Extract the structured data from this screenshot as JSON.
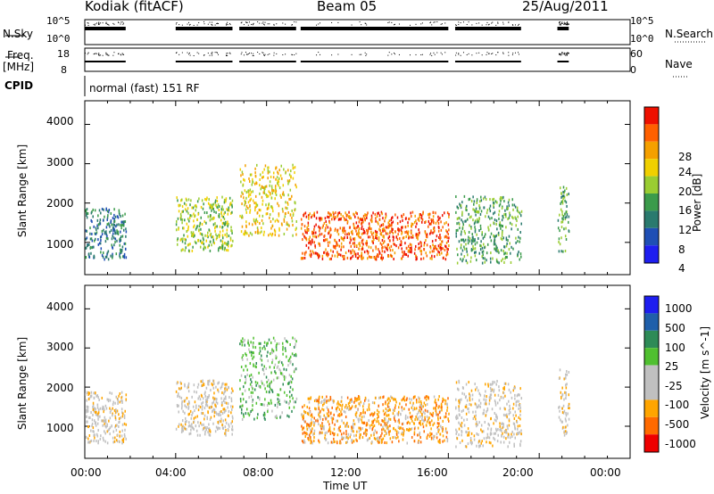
{
  "header": {
    "station": "Kodiak (fitACF)",
    "beam": "Beam 05",
    "date": "25/Aug/2011"
  },
  "mini_panels": {
    "nsky": {
      "left_label": "N.Sky",
      "right_label": "N.Search",
      "left_ticks": [
        "10^5",
        "10^0"
      ],
      "right_ticks": [
        "10^5",
        "10^0"
      ]
    },
    "freq": {
      "left_label_line1": "Freq.",
      "left_label_line2": "[MHz]",
      "right_label": "Nave",
      "left_ticks": [
        "18",
        "8"
      ],
      "right_ticks": [
        "60",
        "0"
      ]
    },
    "cpid": {
      "label": "CPID",
      "text": "normal (fast) 151 RF"
    }
  },
  "x_axis": {
    "label": "Time UT",
    "ticks": [
      "00:00",
      "04:00",
      "08:00",
      "12:00",
      "16:00",
      "20:00",
      "00:00"
    ]
  },
  "colors": {
    "power_scale": [
      "#1e1ef0",
      "#1f4fb5",
      "#2a7a6e",
      "#3b9b4b",
      "#9acd32",
      "#f0d000",
      "#f5a000",
      "#ff6000",
      "#ee1000"
    ],
    "velocity_scale": [
      "#ee0000",
      "#ff6a00",
      "#ffa500",
      "#c0c0c0",
      "#c0c0c0",
      "#50c030",
      "#2e8b57",
      "#1f5faa",
      "#1e1ef0"
    ]
  },
  "chart_data": [
    {
      "type": "heatmap",
      "title": "",
      "xlabel": "Time UT",
      "ylabel": "Slant Range [km]",
      "xlim": [
        "00:00",
        "24:00"
      ],
      "ylim": [
        180,
        4600
      ],
      "yticks": [
        "1000",
        "2000",
        "3000",
        "4000"
      ],
      "colorbar": {
        "label": "Power [dB]",
        "ticks": [
          "4",
          "8",
          "12",
          "16",
          "20",
          "24",
          "28"
        ]
      },
      "scatter_regions": [
        {
          "t_start": 0.0,
          "t_end": 1.8,
          "range_min": 600,
          "range_max": 1900,
          "power_db": 8
        },
        {
          "t_start": 4.0,
          "t_end": 6.5,
          "range_min": 800,
          "range_max": 2200,
          "power_db": 14
        },
        {
          "t_start": 6.8,
          "t_end": 9.3,
          "range_min": 1200,
          "range_max": 3000,
          "power_db": 20
        },
        {
          "t_start": 9.5,
          "t_end": 16.0,
          "range_min": 600,
          "range_max": 1800,
          "power_db": 26
        },
        {
          "t_start": 16.3,
          "t_end": 19.2,
          "range_min": 500,
          "range_max": 2200,
          "power_db": 12
        },
        {
          "t_start": 20.8,
          "t_end": 21.3,
          "range_min": 800,
          "range_max": 2500,
          "power_db": 10
        }
      ]
    },
    {
      "type": "heatmap",
      "title": "",
      "xlabel": "Time UT",
      "ylabel": "Slant Range [km]",
      "xlim": [
        "00:00",
        "24:00"
      ],
      "ylim": [
        180,
        4600
      ],
      "yticks": [
        "1000",
        "2000",
        "3000",
        "4000"
      ],
      "colorbar": {
        "label": "Velocity [m s^-1]",
        "ticks": [
          "-1000",
          "-500",
          "-100",
          "-25",
          "25",
          "100",
          "500",
          "1000"
        ]
      },
      "scatter_regions": [
        {
          "t_start": 0.0,
          "t_end": 1.8,
          "range_min": 600,
          "range_max": 1900,
          "velocity": 0
        },
        {
          "t_start": 4.0,
          "t_end": 6.5,
          "range_min": 800,
          "range_max": 2200,
          "velocity": 0
        },
        {
          "t_start": 6.8,
          "t_end": 9.3,
          "range_min": 1200,
          "range_max": 3300,
          "velocity": 100
        },
        {
          "t_start": 9.5,
          "t_end": 16.0,
          "range_min": 600,
          "range_max": 1800,
          "velocity": -100
        },
        {
          "t_start": 16.3,
          "t_end": 19.2,
          "range_min": 500,
          "range_max": 2200,
          "velocity": 0
        },
        {
          "t_start": 20.8,
          "t_end": 21.3,
          "range_min": 800,
          "range_max": 2500,
          "velocity": 0
        }
      ]
    }
  ]
}
